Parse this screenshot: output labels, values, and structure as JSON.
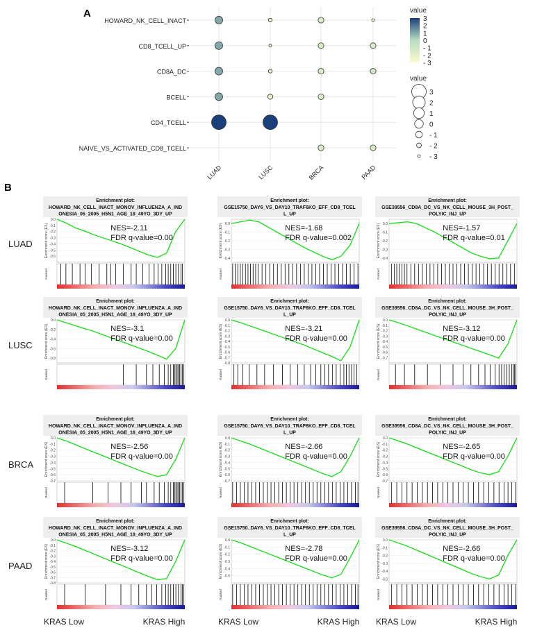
{
  "panel_a": {
    "letter": "A",
    "chart_data": {
      "type": "dotplot",
      "rows": [
        "HOWARD_NK_CELL_INACT",
        "CD8_TCELL_UP",
        "CD8A_DC",
        "BCELL",
        "CD4_TCELL",
        "NAIVE_VS_ACTIVATED_CD8_TCELL"
      ],
      "columns": [
        "LUAD",
        "LUSC",
        "BRCA",
        "PAAD"
      ],
      "values": [
        [
          1.0,
          -2.0,
          -1.5,
          -3.0
        ],
        [
          1.0,
          -3.0,
          -1.5,
          -1.5
        ],
        [
          1.0,
          -2.0,
          -1.5,
          -1.0
        ],
        [
          1.0,
          -2.0,
          -1.5,
          null
        ],
        [
          3.0,
          3.0,
          null,
          null
        ],
        [
          null,
          null,
          -1.5,
          -1.5
        ]
      ],
      "size_values": [
        [
          -0.5,
          -2.5,
          -1.5,
          -3.0
        ],
        [
          -0.5,
          -3.0,
          -1.5,
          -1.5
        ],
        [
          -0.5,
          -2.5,
          -1.5,
          -1.5
        ],
        [
          -0.5,
          -1.8,
          -1.5,
          null
        ],
        [
          3.0,
          3.0,
          null,
          null
        ],
        [
          null,
          null,
          -1.5,
          -1.5
        ]
      ],
      "color_legend": {
        "title": "value",
        "ticks": [
          "3",
          "2",
          "1",
          "0",
          "- 1",
          "- 2",
          "- 3"
        ],
        "range": [
          -3,
          3
        ]
      },
      "size_legend": {
        "title": "value",
        "items": [
          {
            "label": "3",
            "value": 3
          },
          {
            "label": "2",
            "value": 2
          },
          {
            "label": "1",
            "value": 1
          },
          {
            "label": "0",
            "value": 0
          },
          {
            "label": "- 1",
            "value": -1
          },
          {
            "label": "- 2",
            "value": -2
          },
          {
            "label": "- 3",
            "value": -3
          }
        ]
      },
      "colors": {
        "low": "#fbfbd0",
        "mid": "#b7dcc0",
        "high": "#1b3f7a",
        "marker_stroke": "#333333"
      },
      "grid": true
    }
  },
  "panel_b": {
    "letter": "B",
    "row_labels": [
      "LUAD",
      "LUSC",
      "BRCA",
      "PAAD"
    ],
    "x_labels": [
      {
        "low": "KRAS Low",
        "high": "KRAS High"
      },
      {
        "low": "KRAS Low",
        "high": "KRAS High"
      },
      {
        "low": "KRAS Low",
        "high": "KRAS High"
      }
    ],
    "plot_header": "Enrichment plot:",
    "y_axis_label": "Enrichment score (ES)",
    "lower_label": "Ranked",
    "tick_format": "one-decimal",
    "colors": {
      "curve": "#22dd22",
      "bar_low": "#e03030",
      "bar_mid": "#f0c0d8",
      "bar_high": "#1a1a9a",
      "hits": "#000000"
    },
    "chart_data": [
      {
        "type": "line",
        "row": "LUAD",
        "title": [
          "HOWARD_NK_CELL_INACT_MONOV_INFLUENZA_A_IND",
          "ONESIA_05_2005_H5N1_AGE_18_49YO_3DY_UP"
        ],
        "nes": "NES=-2.11",
        "fdr": "FDR q-value=0.00",
        "ylim": [
          -0.7,
          0.0
        ],
        "yticks": [
          0.0,
          -0.1,
          -0.2,
          -0.3,
          -0.4,
          -0.5,
          -0.6
        ],
        "es_curve": [
          0.0,
          -0.06,
          -0.14,
          -0.19,
          -0.25,
          -0.3,
          -0.35,
          -0.4,
          -0.46,
          -0.52,
          -0.58,
          -0.62,
          -0.55,
          -0.2,
          0.0
        ],
        "hits": [
          0.03,
          0.07,
          0.12,
          0.18,
          0.22,
          0.27,
          0.33,
          0.39,
          0.42,
          0.46,
          0.52,
          0.58,
          0.62,
          0.67,
          0.72,
          0.76,
          0.79,
          0.82,
          0.85,
          0.87,
          0.89,
          0.91,
          0.93,
          0.95,
          0.97,
          0.98
        ]
      },
      {
        "type": "line",
        "row": "LUAD",
        "title": [
          "GSE15750_DAY6_VS_DAY10_TRAF6KO_EFF_CD8_TCEL",
          "L_UP"
        ],
        "nes": "NES=-1.68",
        "fdr": "FDR q-value=0.002",
        "ylim": [
          -0.45,
          0.05
        ],
        "yticks": [
          0.0,
          -0.1,
          -0.2,
          -0.3,
          -0.4
        ],
        "es_curve": [
          0.0,
          0.02,
          0.04,
          0.02,
          -0.04,
          -0.1,
          -0.16,
          -0.22,
          -0.28,
          -0.33,
          -0.38,
          -0.42,
          -0.38,
          -0.25,
          0.0
        ],
        "hits": [
          0.01,
          0.03,
          0.05,
          0.07,
          0.09,
          0.11,
          0.13,
          0.15,
          0.17,
          0.19,
          0.21,
          0.24,
          0.27,
          0.3,
          0.33,
          0.36,
          0.39,
          0.42,
          0.45,
          0.48,
          0.51,
          0.54,
          0.57,
          0.6,
          0.63,
          0.66,
          0.69,
          0.72,
          0.75,
          0.78,
          0.81,
          0.84,
          0.87,
          0.9,
          0.93,
          0.96,
          0.99
        ]
      },
      {
        "type": "line",
        "row": "LUAD",
        "title": [
          "GSE39556_CD8A_DC_VS_NK_CELL_MOUSE_3H_POST_",
          "POLYIC_INJ_UP"
        ],
        "nes": "NES=-1.57",
        "fdr": "FDR q-value=0.01",
        "ylim": [
          -0.45,
          0.05
        ],
        "yticks": [
          0.0,
          -0.1,
          -0.2,
          -0.3,
          -0.4
        ],
        "es_curve": [
          0.0,
          0.01,
          0.02,
          0.0,
          -0.05,
          -0.1,
          -0.16,
          -0.22,
          -0.28,
          -0.34,
          -0.38,
          -0.41,
          -0.4,
          -0.2,
          0.0
        ],
        "hits": [
          0.02,
          0.04,
          0.06,
          0.08,
          0.1,
          0.12,
          0.14,
          0.17,
          0.2,
          0.23,
          0.26,
          0.29,
          0.32,
          0.35,
          0.38,
          0.41,
          0.44,
          0.47,
          0.5,
          0.53,
          0.56,
          0.59,
          0.62,
          0.65,
          0.68,
          0.71,
          0.74,
          0.77,
          0.8,
          0.83,
          0.86,
          0.89,
          0.92,
          0.95,
          0.98
        ]
      },
      {
        "type": "line",
        "row": "LUSC",
        "title": [
          "HOWARD_NK_CELL_INACT_MONOV_INFLUENZA_A_IND",
          "ONESIA_05_2005_H5N1_AGE_18_49YO_3DY_UP"
        ],
        "nes": "NES=-3.1",
        "fdr": "FDR q-value=0.00",
        "ylim": [
          -0.9,
          0.0
        ],
        "yticks": [
          0.0,
          -0.2,
          -0.4,
          -0.6,
          -0.8
        ],
        "es_curve": [
          0.0,
          -0.06,
          -0.12,
          -0.18,
          -0.24,
          -0.31,
          -0.38,
          -0.45,
          -0.52,
          -0.59,
          -0.66,
          -0.74,
          -0.82,
          -0.6,
          0.0
        ],
        "hits": [
          0.52,
          0.62,
          0.7,
          0.75,
          0.8,
          0.84,
          0.87,
          0.89,
          0.91,
          0.92,
          0.93,
          0.94,
          0.95,
          0.96,
          0.97,
          0.98,
          0.99
        ]
      },
      {
        "type": "line",
        "row": "LUSC",
        "title": [
          "GSE15750_DAY6_VS_DAY10_TRAF6KO_EFF_CD8_TCEL",
          "L_UP"
        ],
        "nes": "NES=-3.21",
        "fdr": "FDR q-value=0.00",
        "ylim": [
          -0.8,
          0.0
        ],
        "yticks": [
          0.0,
          -0.1,
          -0.2,
          -0.3,
          -0.4,
          -0.5,
          -0.6,
          -0.7,
          -0.8
        ],
        "es_curve": [
          0.0,
          -0.05,
          -0.11,
          -0.17,
          -0.23,
          -0.29,
          -0.35,
          -0.41,
          -0.47,
          -0.54,
          -0.61,
          -0.68,
          -0.76,
          -0.5,
          0.0
        ],
        "hits": [
          0.02,
          0.05,
          0.09,
          0.14,
          0.2,
          0.26,
          0.33,
          0.4,
          0.46,
          0.52,
          0.57,
          0.62,
          0.66,
          0.7,
          0.73,
          0.76,
          0.79,
          0.82,
          0.85,
          0.88,
          0.9,
          0.92,
          0.94,
          0.96,
          0.98
        ]
      },
      {
        "type": "line",
        "row": "LUSC",
        "title": [
          "GSE39556_CD8A_DC_VS_NK_CELL_MOUSE_3H_POST_",
          "POLYIC_INJ_UP"
        ],
        "nes": "NES=-3.12",
        "fdr": "FDR q-value=0.00",
        "ylim": [
          -0.8,
          0.0
        ],
        "yticks": [
          0.0,
          -0.1,
          -0.2,
          -0.3,
          -0.4,
          -0.5,
          -0.6,
          -0.7
        ],
        "es_curve": [
          0.0,
          -0.05,
          -0.11,
          -0.17,
          -0.23,
          -0.29,
          -0.35,
          -0.41,
          -0.47,
          -0.53,
          -0.59,
          -0.65,
          -0.71,
          -0.45,
          0.0
        ],
        "hits": [
          0.05,
          0.12,
          0.2,
          0.3,
          0.4,
          0.5,
          0.58,
          0.64,
          0.7,
          0.75,
          0.79,
          0.83,
          0.86,
          0.88,
          0.9,
          0.92,
          0.94,
          0.96,
          0.97,
          0.98,
          0.99
        ]
      },
      {
        "type": "line",
        "row": "BRCA",
        "title": [
          "HOWARD_NK_CELL_INACT_MONOV_INFLUENZA_A_IND",
          "ONESIA_05_2005_H5N1_AGE_18_49YO_3DY_UP"
        ],
        "nes": "NES=-2.56",
        "fdr": "FDR q-value=0.00",
        "ylim": [
          -0.7,
          0.0
        ],
        "yticks": [
          0.0,
          -0.1,
          -0.2,
          -0.3,
          -0.4,
          -0.5,
          -0.6,
          -0.7
        ],
        "es_curve": [
          0.0,
          -0.05,
          -0.11,
          -0.17,
          -0.23,
          -0.29,
          -0.35,
          -0.41,
          -0.47,
          -0.53,
          -0.58,
          -0.63,
          -0.6,
          -0.35,
          0.0
        ],
        "hits": [
          0.06,
          0.28,
          0.4,
          0.5,
          0.58,
          0.66,
          0.7,
          0.76,
          0.8,
          0.84,
          0.87,
          0.89,
          0.91,
          0.92,
          0.93,
          0.94,
          0.95,
          0.96,
          0.97,
          0.98,
          0.99
        ]
      },
      {
        "type": "line",
        "row": "BRCA",
        "title": [
          "GSE15750_DAY6_VS_DAY10_TRAF6KO_EFF_CD8_TCEL",
          "L_UP"
        ],
        "nes": "NES=-2.66",
        "fdr": "FDR q-value=0.00",
        "ylim": [
          -0.7,
          0.0
        ],
        "yticks": [
          0.0,
          -0.1,
          -0.2,
          -0.3,
          -0.4,
          -0.5,
          -0.6,
          -0.7
        ],
        "es_curve": [
          0.0,
          -0.05,
          -0.1,
          -0.16,
          -0.22,
          -0.28,
          -0.34,
          -0.4,
          -0.46,
          -0.52,
          -0.58,
          -0.63,
          -0.55,
          -0.3,
          0.0
        ],
        "hits": [
          0.01,
          0.04,
          0.07,
          0.1,
          0.13,
          0.16,
          0.19,
          0.22,
          0.25,
          0.28,
          0.31,
          0.34,
          0.37,
          0.4,
          0.43,
          0.46,
          0.49,
          0.52,
          0.55,
          0.58,
          0.61,
          0.64,
          0.67,
          0.7,
          0.73,
          0.76,
          0.79,
          0.82,
          0.85,
          0.88,
          0.91,
          0.94,
          0.97,
          0.99
        ]
      },
      {
        "type": "line",
        "row": "BRCA",
        "title": [
          "GSE39556_CD8A_DC_VS_NK_CELL_MOUSE_3H_POST_",
          "POLYIC_INJ_UP"
        ],
        "nes": "NES=-2.65",
        "fdr": "FDR q-value=0.00",
        "ylim": [
          -0.7,
          0.0
        ],
        "yticks": [
          0.0,
          -0.1,
          -0.2,
          -0.3,
          -0.4,
          -0.5,
          -0.6,
          -0.7
        ],
        "es_curve": [
          0.0,
          -0.05,
          -0.1,
          -0.16,
          -0.22,
          -0.28,
          -0.34,
          -0.4,
          -0.46,
          -0.52,
          -0.57,
          -0.6,
          -0.55,
          -0.3,
          0.0
        ],
        "hits": [
          0.02,
          0.06,
          0.1,
          0.14,
          0.18,
          0.22,
          0.26,
          0.3,
          0.34,
          0.38,
          0.42,
          0.46,
          0.5,
          0.54,
          0.58,
          0.62,
          0.66,
          0.7,
          0.74,
          0.78,
          0.82,
          0.86,
          0.9,
          0.93,
          0.96,
          0.99
        ]
      },
      {
        "type": "line",
        "row": "PAAD",
        "title": [
          "HOWARD_NK_CELL_INACT_MONOV_INFLUENZA_A_IND",
          "ONESIA_05_2005_H5N1_AGE_18_49YO_3DY_UP"
        ],
        "nes": "NES=-3.12",
        "fdr": "FDR q-value=0.00",
        "ylim": [
          -0.8,
          0.0
        ],
        "yticks": [
          0.0,
          -0.1,
          -0.2,
          -0.3,
          -0.4,
          -0.5,
          -0.6,
          -0.7,
          -0.8
        ],
        "es_curve": [
          0.0,
          -0.06,
          -0.12,
          -0.19,
          -0.26,
          -0.33,
          -0.4,
          -0.47,
          -0.54,
          -0.61,
          -0.68,
          -0.74,
          -0.72,
          -0.4,
          0.0
        ],
        "hits": [
          0.06,
          0.22,
          0.38,
          0.5,
          0.58,
          0.64,
          0.7,
          0.74,
          0.78,
          0.82,
          0.85,
          0.87,
          0.89,
          0.91,
          0.93,
          0.95,
          0.97,
          0.98,
          0.99
        ]
      },
      {
        "type": "line",
        "row": "PAAD",
        "title": [
          "GSE15750_DAY6_VS_DAY10_TRAF6KO_EFF_CD8_TCEL",
          "L_UP"
        ],
        "nes": "NES=-2.78",
        "fdr": "FDR q-value=0.00",
        "ylim": [
          -0.6,
          0.0
        ],
        "yticks": [
          0.0,
          -0.1,
          -0.2,
          -0.3,
          -0.4,
          -0.5
        ],
        "es_curve": [
          0.0,
          -0.04,
          -0.09,
          -0.14,
          -0.19,
          -0.24,
          -0.29,
          -0.34,
          -0.39,
          -0.44,
          -0.49,
          -0.53,
          -0.48,
          -0.25,
          0.0
        ],
        "hits": [
          0.01,
          0.04,
          0.07,
          0.1,
          0.13,
          0.16,
          0.19,
          0.22,
          0.25,
          0.28,
          0.31,
          0.34,
          0.37,
          0.4,
          0.43,
          0.46,
          0.49,
          0.52,
          0.55,
          0.58,
          0.61,
          0.64,
          0.67,
          0.7,
          0.73,
          0.76,
          0.79,
          0.82,
          0.85,
          0.88,
          0.91,
          0.94,
          0.97,
          0.99
        ]
      },
      {
        "type": "line",
        "row": "PAAD",
        "title": [
          "GSE39556_CD8A_DC_VS_NK_CELL_MOUSE_3H_POST_",
          "POLYIC_INJ_UP"
        ],
        "nes": "NES=-2.66",
        "fdr": "FDR q-value=0.00",
        "ylim": [
          -0.55,
          0.0
        ],
        "yticks": [
          0.0,
          -0.1,
          -0.2,
          -0.3,
          -0.4,
          -0.5
        ],
        "es_curve": [
          0.0,
          -0.04,
          -0.08,
          -0.13,
          -0.18,
          -0.23,
          -0.28,
          -0.33,
          -0.38,
          -0.43,
          -0.47,
          -0.5,
          -0.45,
          -0.2,
          0.0
        ],
        "hits": [
          0.02,
          0.06,
          0.1,
          0.14,
          0.18,
          0.22,
          0.26,
          0.3,
          0.34,
          0.38,
          0.42,
          0.46,
          0.5,
          0.54,
          0.58,
          0.62,
          0.66,
          0.7,
          0.74,
          0.78,
          0.82,
          0.86,
          0.9,
          0.93,
          0.96,
          0.99
        ]
      }
    ]
  }
}
